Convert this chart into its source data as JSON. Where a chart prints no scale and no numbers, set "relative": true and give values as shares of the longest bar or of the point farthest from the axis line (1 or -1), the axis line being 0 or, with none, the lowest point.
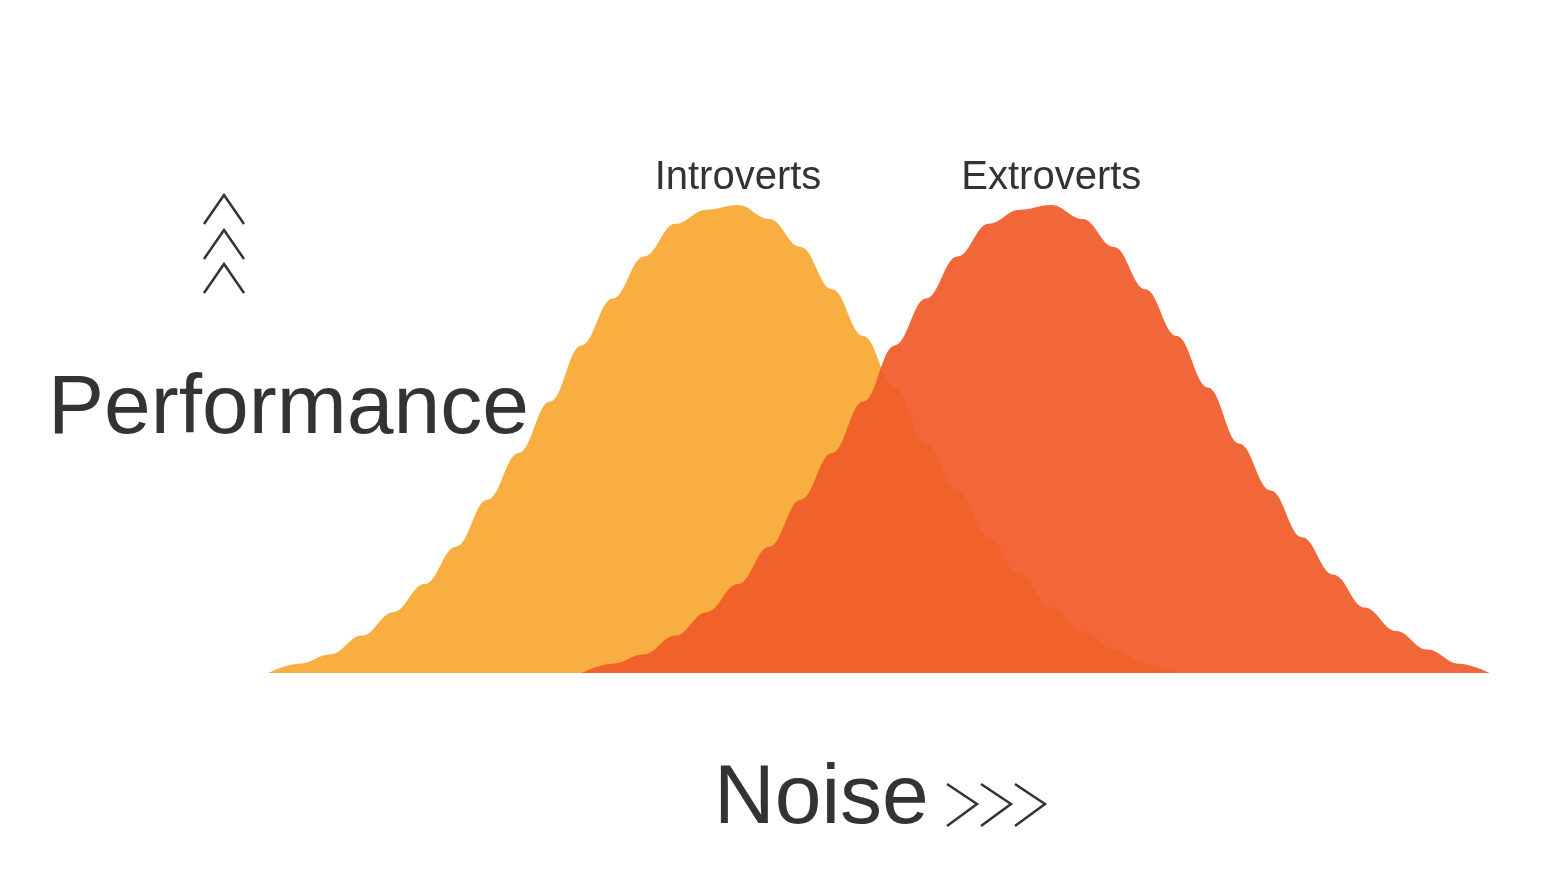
{
  "chart_data": {
    "type": "area",
    "relative": true,
    "xlabel": "Noise",
    "ylabel": "Performance",
    "categories": [
      null,
      null,
      null,
      null,
      null,
      null,
      null,
      null,
      null,
      null,
      null,
      null,
      null,
      null,
      null,
      null,
      null,
      null,
      null,
      null,
      null,
      null,
      null,
      null,
      null,
      null,
      null,
      null,
      null,
      null,
      null,
      null,
      null,
      null,
      null,
      null,
      null,
      null,
      null,
      null
    ],
    "series": [
      {
        "name": "Introverts",
        "color": "#f9ae42",
        "values": [
          0,
          0.02,
          0.04,
          0.08,
          0.13,
          0.19,
          0.27,
          0.37,
          0.47,
          0.58,
          0.7,
          0.8,
          0.89,
          0.96,
          0.99,
          1,
          0.97,
          0.91,
          0.82,
          0.72,
          0.61,
          0.49,
          0.39,
          0.29,
          0.21,
          0.14,
          0.09,
          0.05,
          0.02,
          0,
          null,
          null,
          null,
          null,
          null,
          null,
          null,
          null,
          null,
          null
        ]
      },
      {
        "name": "Extroverts",
        "color": "#f05a28",
        "values": [
          null,
          null,
          null,
          null,
          null,
          null,
          null,
          null,
          null,
          null,
          0,
          0.02,
          0.04,
          0.08,
          0.13,
          0.19,
          0.27,
          0.37,
          0.47,
          0.58,
          0.7,
          0.8,
          0.89,
          0.96,
          0.99,
          1,
          0.97,
          0.91,
          0.82,
          0.72,
          0.61,
          0.49,
          0.39,
          0.29,
          0.21,
          0.14,
          0.09,
          0.05,
          0.02,
          0
        ]
      }
    ],
    "grid": false,
    "legend": false
  }
}
